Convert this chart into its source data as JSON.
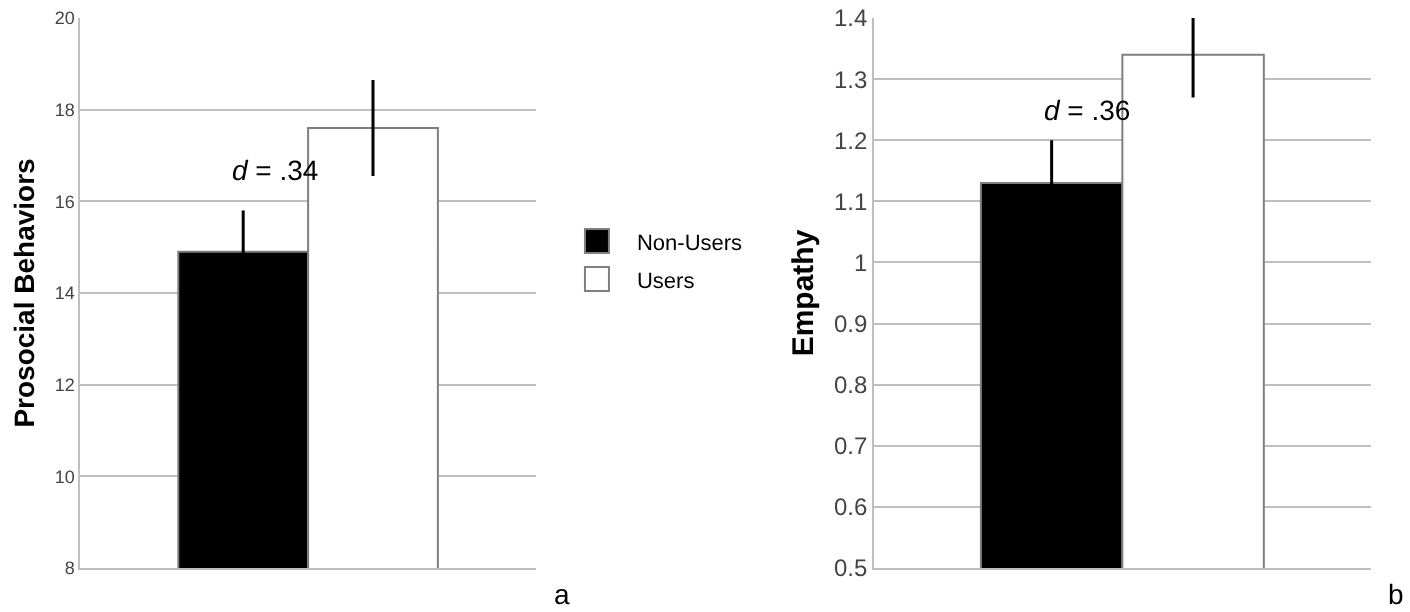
{
  "chart_data": [
    {
      "type": "bar",
      "ylabel": "Prosocial Behaviors",
      "categories": [
        null
      ],
      "ylim": [
        8,
        20
      ],
      "yticks": [
        8,
        10,
        12,
        14,
        16,
        18,
        20
      ],
      "grid": "y",
      "legend": "right",
      "series": [
        {
          "name": "Non-Users",
          "color": "#000000",
          "values": [
            14.9
          ],
          "errors": [
            0.9
          ]
        },
        {
          "name": "Users",
          "color": "#ffffff",
          "values": [
            17.6
          ],
          "errors": [
            1.05
          ]
        }
      ],
      "annotations": [
        "d = .34",
        "a"
      ]
    },
    {
      "type": "bar",
      "ylabel": "Empathy",
      "categories": [
        null
      ],
      "ylim": [
        0.5,
        1.4
      ],
      "yticks": [
        0.5,
        0.6,
        0.7,
        0.8,
        0.9,
        1,
        1.1,
        1.2,
        1.3,
        1.4
      ],
      "grid": "y",
      "series": [
        {
          "color": "#000000",
          "values": [
            1.13
          ],
          "errors": [
            0.07
          ]
        },
        {
          "color": "#ffffff",
          "values": [
            1.34
          ],
          "errors": [
            0.07
          ]
        }
      ],
      "annotations": [
        "d = .36",
        "b"
      ]
    }
  ]
}
